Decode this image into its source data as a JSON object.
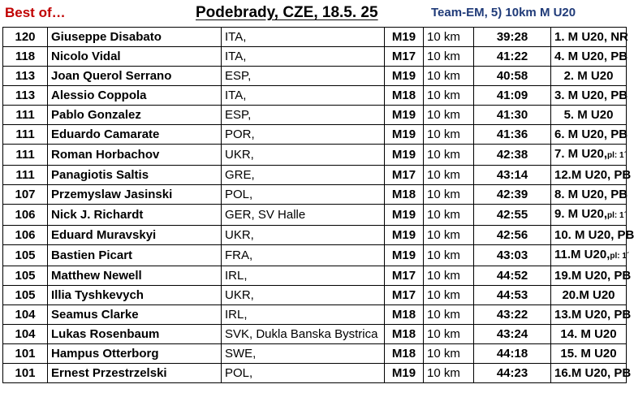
{
  "header": {
    "best_of": "Best of…",
    "event": "Podebrady, CZE, 18.5. 25",
    "category": "Team-EM, 5) 10km M U20"
  },
  "rows": [
    {
      "pts": "120",
      "name": "Giuseppe Disabato",
      "club": "ITA,",
      "cat": "M19",
      "dist": "10 km",
      "time": "39:28",
      "place": "1. M U20, NR",
      "place_note": ""
    },
    {
      "pts": "118",
      "name": "Nicolo Vidal",
      "club": "ITA,",
      "cat": "M17",
      "dist": "10 km",
      "time": "41:22",
      "place": "4. M U20, PB",
      "place_note": ""
    },
    {
      "pts": "113",
      "name": "Joan Querol Serrano",
      "club": "ESP,",
      "cat": "M19",
      "dist": "10 km",
      "time": "40:58",
      "place": "2. M U20",
      "place_note": ""
    },
    {
      "pts": "113",
      "name": "Alessio Coppola",
      "club": "ITA,",
      "cat": "M18",
      "dist": "10 km",
      "time": "41:09",
      "place": "3. M U20, PB",
      "place_note": ""
    },
    {
      "pts": "111",
      "name": "Pablo Gonzalez",
      "club": "ESP,",
      "cat": "M19",
      "dist": "10 km",
      "time": "41:30",
      "place": "5. M U20",
      "place_note": ""
    },
    {
      "pts": "111",
      "name": "Eduardo Camarate",
      "club": "POR,",
      "cat": "M19",
      "dist": "10 km",
      "time": "41:36",
      "place": "6. M U20, PB",
      "place_note": ""
    },
    {
      "pts": "111",
      "name": "Roman Horbachov",
      "club": "UKR,",
      "cat": "M19",
      "dist": "10 km",
      "time": "42:38",
      "place": "7. M U20,",
      "place_note": "pl: 1´"
    },
    {
      "pts": "111",
      "name": "Panagiotis Saltis",
      "club": "GRE,",
      "cat": "M17",
      "dist": "10 km",
      "time": "43:14",
      "place": "12.M U20, PB",
      "place_note": ""
    },
    {
      "pts": "107",
      "name": "Przemyslaw Jasinski",
      "club": "POL,",
      "cat": "M18",
      "dist": "10 km",
      "time": "42:39",
      "place": "8. M U20, PB",
      "place_note": ""
    },
    {
      "pts": "106",
      "name": "Nick J. Richardt",
      "club": "GER, SV Halle",
      "cat": "M19",
      "dist": "10 km",
      "time": "42:55",
      "place": "9. M U20,",
      "place_note": "pl: 1´"
    },
    {
      "pts": "106",
      "name": "Eduard Muravskyi",
      "club": "UKR,",
      "cat": "M19",
      "dist": "10 km",
      "time": "42:56",
      "place": "10. M U20, PB",
      "place_note": ""
    },
    {
      "pts": "105",
      "name": "Bastien Picart",
      "club": "FRA,",
      "cat": "M19",
      "dist": "10 km",
      "time": "43:03",
      "place": "11.M U20,",
      "place_note": "pl: 1´"
    },
    {
      "pts": "105",
      "name": "Matthew Newell",
      "club": "IRL,",
      "cat": "M17",
      "dist": "10 km",
      "time": "44:52",
      "place": "19.M U20, PB",
      "place_note": ""
    },
    {
      "pts": "105",
      "name": "Illia Tyshkevych",
      "club": "UKR,",
      "cat": "M17",
      "dist": "10 km",
      "time": "44:53",
      "place": "20.M U20",
      "place_note": ""
    },
    {
      "pts": "104",
      "name": "Seamus Clarke",
      "club": "IRL,",
      "cat": "M18",
      "dist": "10 km",
      "time": "43:22",
      "place": "13.M U20, PB",
      "place_note": ""
    },
    {
      "pts": "104",
      "name": "Lukas Rosenbaum",
      "club": "SVK, Dukla Banska Bystrica",
      "cat": "M18",
      "dist": "10 km",
      "time": "43:24",
      "place": "14. M U20",
      "place_note": ""
    },
    {
      "pts": "101",
      "name": "Hampus Otterborg",
      "club": "SWE,",
      "cat": "M18",
      "dist": "10 km",
      "time": "44:18",
      "place": "15. M U20",
      "place_note": ""
    },
    {
      "pts": "101",
      "name": "Ernest Przestrzelski",
      "club": "POL,",
      "cat": "M19",
      "dist": "10 km",
      "time": "44:23",
      "place": "16.M U20, PB",
      "place_note": ""
    }
  ]
}
